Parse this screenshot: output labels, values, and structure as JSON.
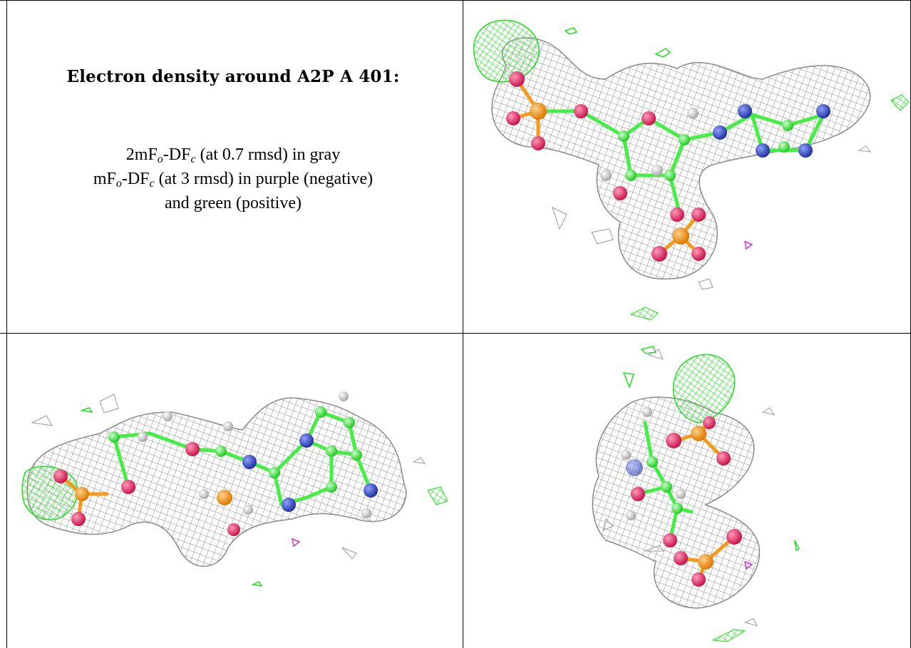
{
  "caption": {
    "title": "Electron density around A2P A 401:",
    "line1": {
      "prefix": "2mF",
      "sub1": "o",
      "mid": "-DF",
      "sub2": "c",
      "suffix": " (at 0.7 rmsd) in gray"
    },
    "line2": {
      "prefix": "mF",
      "sub1": "o",
      "mid": "-DF",
      "sub2": "c",
      "suffix": " (at 3 rmsd) in purple (negative)"
    },
    "line3": "and green (positive)"
  },
  "colors": {
    "mesh_gray": "#8a8a8a",
    "mesh_green": "#22dd22",
    "mesh_purple": "#cc33cc",
    "carbon": "#44ee44",
    "oxygen": "#e0245e",
    "nitrogen": "#3344bb",
    "phosphorus": "#f59a1a",
    "hydrogen": "#e8e8e8",
    "border": "#000000"
  },
  "views": [
    "view-top-right",
    "view-bottom-left",
    "view-bottom-right"
  ]
}
